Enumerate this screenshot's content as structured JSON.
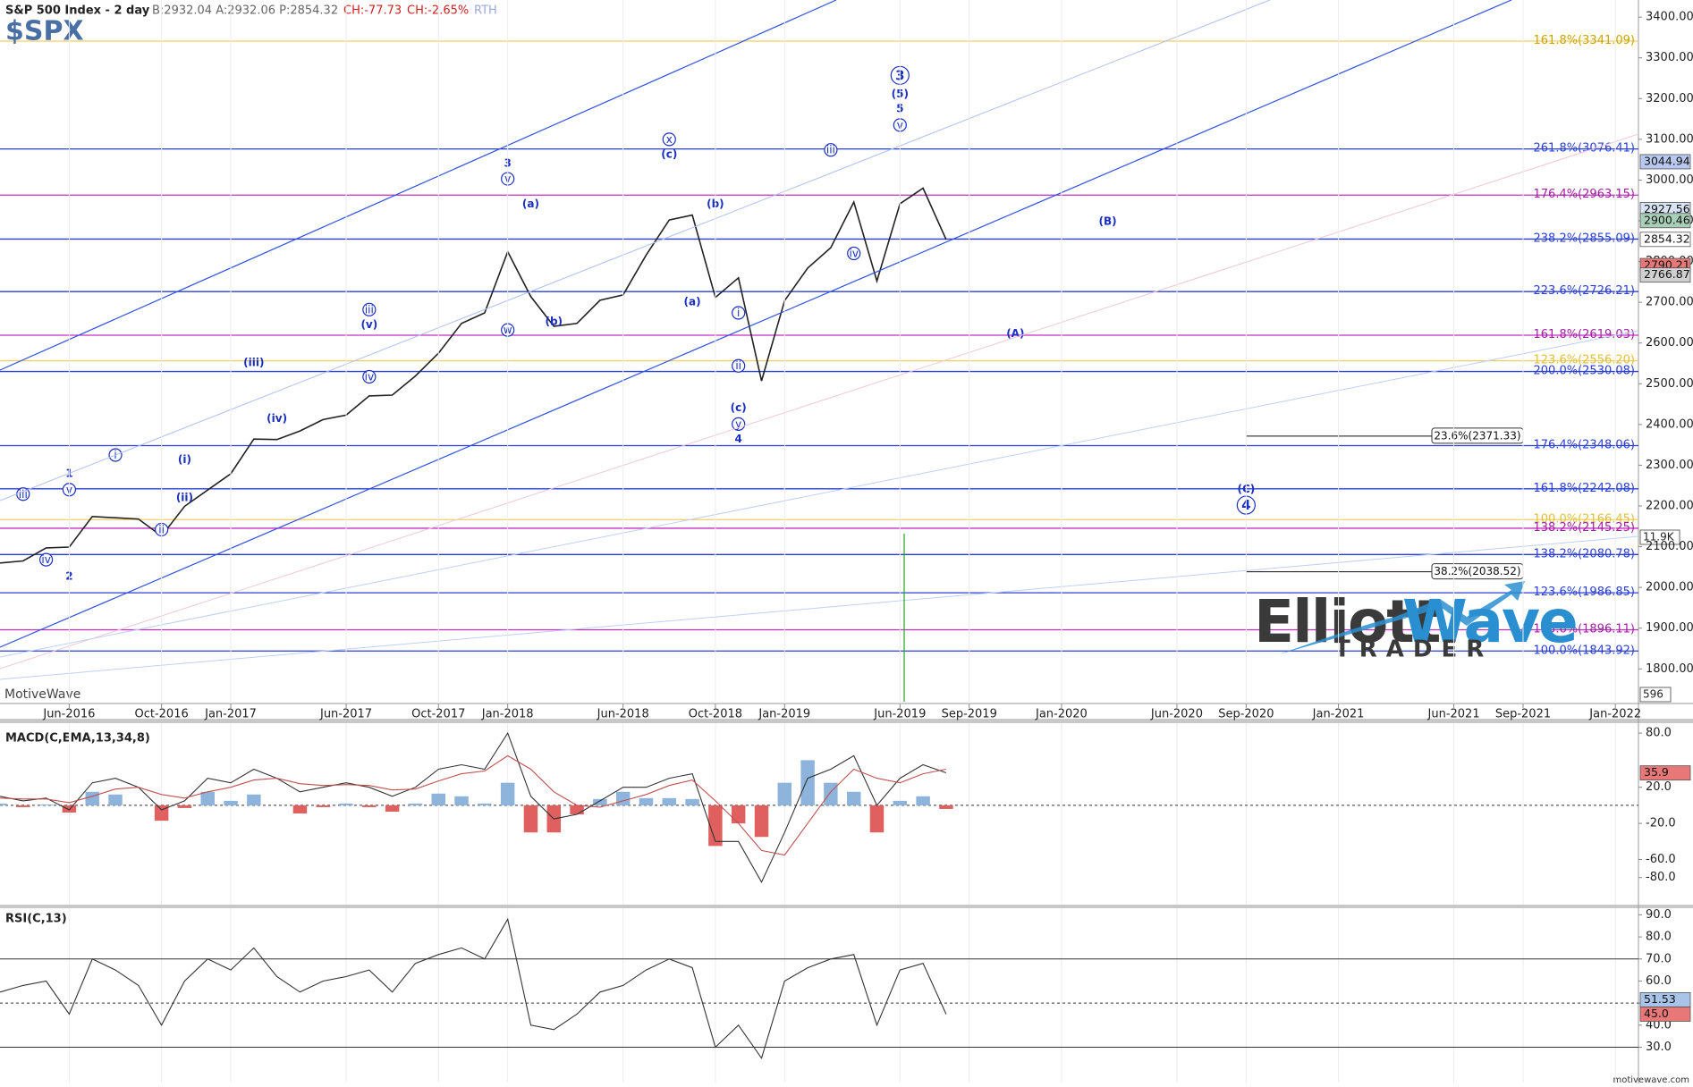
{
  "chart_data": [
    {
      "type": "line",
      "title": "S&P 500 Index - 2 day",
      "quote": "B:2932.04 A:2932.06 P:2854.32",
      "change": "CH:-77.73",
      "change_pct": "CH:-2.65%",
      "session": "RTH",
      "symbol": "$SPX",
      "xlim": [
        "2016-03",
        "2022-02"
      ],
      "xticks": [
        {
          "value": "2016-06",
          "label": "Jun-2016"
        },
        {
          "value": "2016-10",
          "label": "Oct-2016"
        },
        {
          "value": "2017-01",
          "label": "Jan-2017"
        },
        {
          "value": "2017-06",
          "label": "Jun-2017"
        },
        {
          "value": "2017-10",
          "label": "Oct-2017"
        },
        {
          "value": "2018-01",
          "label": "Jan-2018"
        },
        {
          "value": "2018-06",
          "label": "Jun-2018"
        },
        {
          "value": "2018-10",
          "label": "Oct-2018"
        },
        {
          "value": "2019-01",
          "label": "Jan-2019"
        },
        {
          "value": "2019-06",
          "label": "Jun-2019"
        },
        {
          "value": "2019-09",
          "label": "Sep-2019"
        },
        {
          "value": "2020-01",
          "label": "Jan-2020"
        },
        {
          "value": "2020-06",
          "label": "Jun-2020"
        },
        {
          "value": "2020-09",
          "label": "Sep-2020"
        },
        {
          "value": "2021-01",
          "label": "Jan-2021"
        },
        {
          "value": "2021-06",
          "label": "Jun-2021"
        },
        {
          "value": "2021-09",
          "label": "Sep-2021"
        },
        {
          "value": "2022-01",
          "label": "Jan-2022"
        }
      ],
      "x": [
        "2016-03",
        "2016-04",
        "2016-05",
        "2016-06",
        "2016-07",
        "2016-08",
        "2016-09",
        "2016-10",
        "2016-11",
        "2016-12",
        "2017-01",
        "2017-02",
        "2017-03",
        "2017-04",
        "2017-05",
        "2017-06",
        "2017-07",
        "2017-08",
        "2017-09",
        "2017-10",
        "2017-11",
        "2017-12",
        "2018-01",
        "2018-02",
        "2018-03",
        "2018-04",
        "2018-05",
        "2018-06",
        "2018-07",
        "2018-08",
        "2018-09",
        "2018-10",
        "2018-11",
        "2018-12",
        "2019-01",
        "2019-02",
        "2019-03",
        "2019-04",
        "2019-05",
        "2019-06",
        "2019-07",
        "2019-08"
      ],
      "series": [
        {
          "color": "#222222",
          "values": [
            2060,
            2065,
            2097,
            2099,
            2174,
            2171,
            2168,
            2126,
            2199,
            2239,
            2279,
            2364,
            2363,
            2384,
            2412,
            2423,
            2470,
            2472,
            2519,
            2575,
            2648,
            2674,
            2824,
            2714,
            2641,
            2648,
            2705,
            2718,
            2816,
            2902,
            2914,
            2712,
            2760,
            2507,
            2704,
            2784,
            2834,
            2946,
            2752,
            2942,
            2980,
            2854
          ]
        }
      ],
      "ylim": [
        1715,
        3442
      ],
      "yticks": [
        {
          "value": 1800,
          "label": "1800.00"
        },
        {
          "value": 1900,
          "label": "1900.00"
        },
        {
          "value": 2000,
          "label": "2000.00"
        },
        {
          "value": 2100,
          "label": "2100.00"
        },
        {
          "value": 2200,
          "label": "2200.00"
        },
        {
          "value": 2300,
          "label": "2300.00"
        },
        {
          "value": 2400,
          "label": "2400.00"
        },
        {
          "value": 2500,
          "label": "2500.00"
        },
        {
          "value": 2600,
          "label": "2600.00"
        },
        {
          "value": 2700,
          "label": "2700.00"
        },
        {
          "value": 2800,
          "label": "2800.00"
        },
        {
          "value": 2900,
          "label": "2900.00"
        },
        {
          "value": 3000,
          "label": "3000.00"
        },
        {
          "value": 3100,
          "label": "3100.00"
        },
        {
          "value": 3200,
          "label": "3200.00"
        },
        {
          "value": 3300,
          "label": "3300.00"
        },
        {
          "value": 3400,
          "label": "3400.00"
        }
      ],
      "levels": [
        {
          "value": 3341.09,
          "label": "161.8%(3341.09)",
          "color": "#f0d060",
          "text_color": "#c9a400"
        },
        {
          "value": 3076.41,
          "label": "261.8%(3076.41)",
          "color": "#2b3fd6",
          "text_color": "#2b3fd6"
        },
        {
          "value": 2963.15,
          "label": "176.4%(2963.15)",
          "color": "#c030c0",
          "text_color": "#a020a0"
        },
        {
          "value": 2855.09,
          "label": "238.2%(2855.09)",
          "color": "#2b3fd6",
          "text_color": "#2b3fd6"
        },
        {
          "value": 2726.21,
          "label": "223.6%(2726.21)",
          "color": "#2b3fd6",
          "text_color": "#2b3fd6"
        },
        {
          "value": 2619.03,
          "label": "161.8%(2619.03)",
          "color": "#c030c0",
          "text_color": "#a020a0"
        },
        {
          "value": 2556.2,
          "label": "123.6%(2556.20)",
          "color": "#f0d060",
          "text_color": "#e0c040"
        },
        {
          "value": 2530.08,
          "label": "200.0%(2530.08)",
          "color": "#2b3fd6",
          "text_color": "#2b3fd6"
        },
        {
          "value": 2348.06,
          "label": "176.4%(2348.06)",
          "color": "#2b3fd6",
          "text_color": "#2b3fd6"
        },
        {
          "value": 2242.08,
          "label": "161.8%(2242.08)",
          "color": "#2b3fd6",
          "text_color": "#2b3fd6"
        },
        {
          "value": 2166.45,
          "label": "100.0%(2166.45)",
          "color": "#f0d060",
          "text_color": "#e0c040"
        },
        {
          "value": 2145.25,
          "label": "138.2%(2145.25)",
          "color": "#c030c0",
          "text_color": "#a020a0"
        },
        {
          "value": 2080.78,
          "label": "138.2%(2080.78)",
          "color": "#2b3fd6",
          "text_color": "#2b3fd6"
        },
        {
          "value": 1986.85,
          "label": "123.6%(1986.85)",
          "color": "#2b3fd6",
          "text_color": "#2b3fd6"
        },
        {
          "value": 1896.11,
          "label": "123.6%(1896.11)",
          "color": "#c030c0",
          "text_color": "#a020a0"
        },
        {
          "value": 1843.92,
          "label": "100.0%(1843.92)",
          "color": "#2b3fd6",
          "text_color": "#2b3fd6"
        }
      ],
      "retracements": [
        {
          "value": 2371.33,
          "label": "23.6%(2371.33)",
          "x1": "2020-09",
          "x2": "2021-09"
        },
        {
          "value": 2038.52,
          "label": "38.2%(2038.52)",
          "x1": "2020-09",
          "x2": "2021-09"
        }
      ],
      "side_tags": [
        {
          "value": 3044.94,
          "label": "3044.94",
          "color": "#b8c8f0"
        },
        {
          "value": 2927.56,
          "label": "2927.56",
          "color": "#d8e4f4"
        },
        {
          "value": 2900.46,
          "label": "2900.46",
          "color": "#a8d0b8"
        },
        {
          "value": 2854.32,
          "label": "2854.32",
          "color": "#ffffff"
        },
        {
          "value": 2790.21,
          "label": "2790.21",
          "color": "#e87878"
        },
        {
          "value": 2766.87,
          "label": "2766.87",
          "color": "#d0d0d0"
        }
      ],
      "annotations": [
        {
          "text": "iii",
          "x": "2016-04",
          "y": 2229,
          "circled": true
        },
        {
          "text": "iv",
          "x": "2016-05",
          "y": 2068,
          "circled": true
        },
        {
          "text": "1",
          "x": "2016-06",
          "y": 2280
        },
        {
          "text": "v",
          "x": "2016-06",
          "y": 2240,
          "circled": true
        },
        {
          "text": "2",
          "x": "2016-06",
          "y": 2028
        },
        {
          "text": "i",
          "x": "2016-08",
          "y": 2325,
          "circled": true
        },
        {
          "text": "ii",
          "x": "2016-10",
          "y": 2142,
          "circled": true
        },
        {
          "text": "(i)",
          "x": "2016-11",
          "y": 2314
        },
        {
          "text": "(ii)",
          "x": "2016-11",
          "y": 2221
        },
        {
          "text": "(iii)",
          "x": "2017-02",
          "y": 2552
        },
        {
          "text": "(iv)",
          "x": "2017-03",
          "y": 2415
        },
        {
          "text": "iii",
          "x": "2017-07",
          "y": 2682,
          "circled": true
        },
        {
          "text": "(v)",
          "x": "2017-07",
          "y": 2645
        },
        {
          "text": "iv",
          "x": "2017-07",
          "y": 2517,
          "circled": true
        },
        {
          "text": "3",
          "x": "2018-01",
          "y": 3042
        },
        {
          "text": "v",
          "x": "2018-01",
          "y": 3003,
          "circled": true
        },
        {
          "text": "w",
          "x": "2018-01",
          "y": 2632,
          "circled": true
        },
        {
          "text": "(a)",
          "x": "2018-02",
          "y": 2942
        },
        {
          "text": "(b)",
          "x": "2018-03",
          "y": 2653
        },
        {
          "text": "x",
          "x": "2018-08",
          "y": 3100,
          "circled": true
        },
        {
          "text": "(c)",
          "x": "2018-08",
          "y": 3064
        },
        {
          "text": "(a)",
          "x": "2018-09",
          "y": 2701
        },
        {
          "text": "(b)",
          "x": "2018-10",
          "y": 2942
        },
        {
          "text": "i",
          "x": "2018-11",
          "y": 2674,
          "circled": true
        },
        {
          "text": "ii",
          "x": "2018-11",
          "y": 2544,
          "circled": true
        },
        {
          "text": "(c)",
          "x": "2018-11",
          "y": 2441
        },
        {
          "text": "y",
          "x": "2018-11",
          "y": 2401,
          "circled": true
        },
        {
          "text": "4",
          "x": "2018-11",
          "y": 2364
        },
        {
          "text": "iii",
          "x": "2019-03",
          "y": 3074,
          "circled": true
        },
        {
          "text": "iv",
          "x": "2019-04",
          "y": 2820,
          "circled": true
        },
        {
          "text": "v",
          "x": "2019-06",
          "y": 3135,
          "circled": true
        },
        {
          "text": "5",
          "x": "2019-06",
          "y": 3175
        },
        {
          "text": "(5)",
          "x": "2019-06",
          "y": 3212
        },
        {
          "text": "3",
          "x": "2019-06",
          "y": 3257,
          "circled": true,
          "large": true
        },
        {
          "text": "(A)",
          "x": "2019-11",
          "y": 2624
        },
        {
          "text": "(B)",
          "x": "2020-03",
          "y": 2899
        },
        {
          "text": "(C)",
          "x": "2020-09",
          "y": 2242
        },
        {
          "text": "4",
          "x": "2020-09",
          "y": 2202,
          "circled": true,
          "large": true
        }
      ]
    },
    {
      "type": "macd",
      "title": "MACD(C,EMA,13,34,8)",
      "ylim": [
        -110,
        91
      ],
      "yticks": [
        {
          "value": 80,
          "label": "80.0"
        },
        {
          "value": 20,
          "label": "20.0"
        },
        {
          "value": -20,
          "label": "-20.0"
        },
        {
          "value": -60,
          "label": "-60.0"
        },
        {
          "value": -80,
          "label": "-80.0"
        }
      ],
      "levels": [
        {
          "value": 0,
          "dashed": true
        }
      ],
      "series": [
        {
          "kind": "bar",
          "color": "#8fb4dc",
          "negative_color": "#e06060",
          "values": [
            2,
            -2,
            1,
            -8,
            15,
            12,
            0,
            -17,
            -3,
            15,
            5,
            12,
            0,
            -9,
            -2,
            2,
            -2,
            -7,
            2,
            13,
            10,
            2,
            25,
            -30,
            -30,
            -10,
            7,
            15,
            8,
            8,
            7,
            -45,
            -20,
            -35,
            25,
            50,
            25,
            15,
            -30,
            5,
            10,
            -4
          ]
        },
        {
          "color": "#333333",
          "values": [
            10,
            5,
            8,
            -5,
            25,
            30,
            20,
            -5,
            5,
            30,
            25,
            40,
            30,
            15,
            20,
            25,
            20,
            10,
            20,
            40,
            45,
            40,
            80,
            10,
            -15,
            -10,
            5,
            20,
            20,
            30,
            35,
            -40,
            -40,
            -85,
            -30,
            30,
            40,
            55,
            0,
            30,
            45,
            36
          ]
        },
        {
          "color": "#c05050",
          "values": [
            8,
            7,
            7,
            3,
            10,
            18,
            20,
            12,
            8,
            15,
            20,
            28,
            30,
            24,
            22,
            23,
            22,
            17,
            18,
            27,
            35,
            38,
            55,
            40,
            15,
            0,
            -2,
            5,
            12,
            22,
            28,
            5,
            -20,
            -50,
            -55,
            -20,
            15,
            40,
            30,
            25,
            35,
            40
          ]
        }
      ],
      "side_tags": [
        {
          "value": 35.9,
          "label": "35.9",
          "color": "#e87878"
        }
      ]
    },
    {
      "type": "rsi",
      "title": "RSI(C,13)",
      "ylim": [
        14,
        93
      ],
      "yticks": [
        {
          "value": 90,
          "label": "90.0"
        },
        {
          "value": 80,
          "label": "80.0"
        },
        {
          "value": 70,
          "label": "70.0"
        },
        {
          "value": 60,
          "label": "60.0"
        },
        {
          "value": 50,
          "label": "50.0"
        },
        {
          "value": 40,
          "label": "40.0"
        },
        {
          "value": 30,
          "label": "30.0"
        }
      ],
      "levels": [
        {
          "value": 70
        },
        {
          "value": 50,
          "dashed": true
        },
        {
          "value": 30
        }
      ],
      "series": [
        {
          "color": "#333333",
          "values": [
            55,
            58,
            60,
            45,
            70,
            65,
            58,
            40,
            60,
            70,
            65,
            75,
            62,
            55,
            60,
            62,
            65,
            55,
            68,
            72,
            75,
            70,
            88,
            40,
            38,
            45,
            55,
            58,
            65,
            70,
            66,
            30,
            40,
            25,
            60,
            66,
            70,
            72,
            40,
            65,
            68,
            45
          ]
        }
      ],
      "side_tags": [
        {
          "value": 51.53,
          "label": "51.53",
          "color": "#a8c4e8"
        },
        {
          "value": 45.0,
          "label": "45.0",
          "color": "#e87878"
        }
      ]
    }
  ],
  "watermark": "MotiveWave",
  "footer": "motivewave.com",
  "volume_tags": [
    "11.9K",
    "596"
  ],
  "logo": {
    "word1": "Elliott",
    "word2": "Wave",
    "tagline": "TRADER"
  }
}
